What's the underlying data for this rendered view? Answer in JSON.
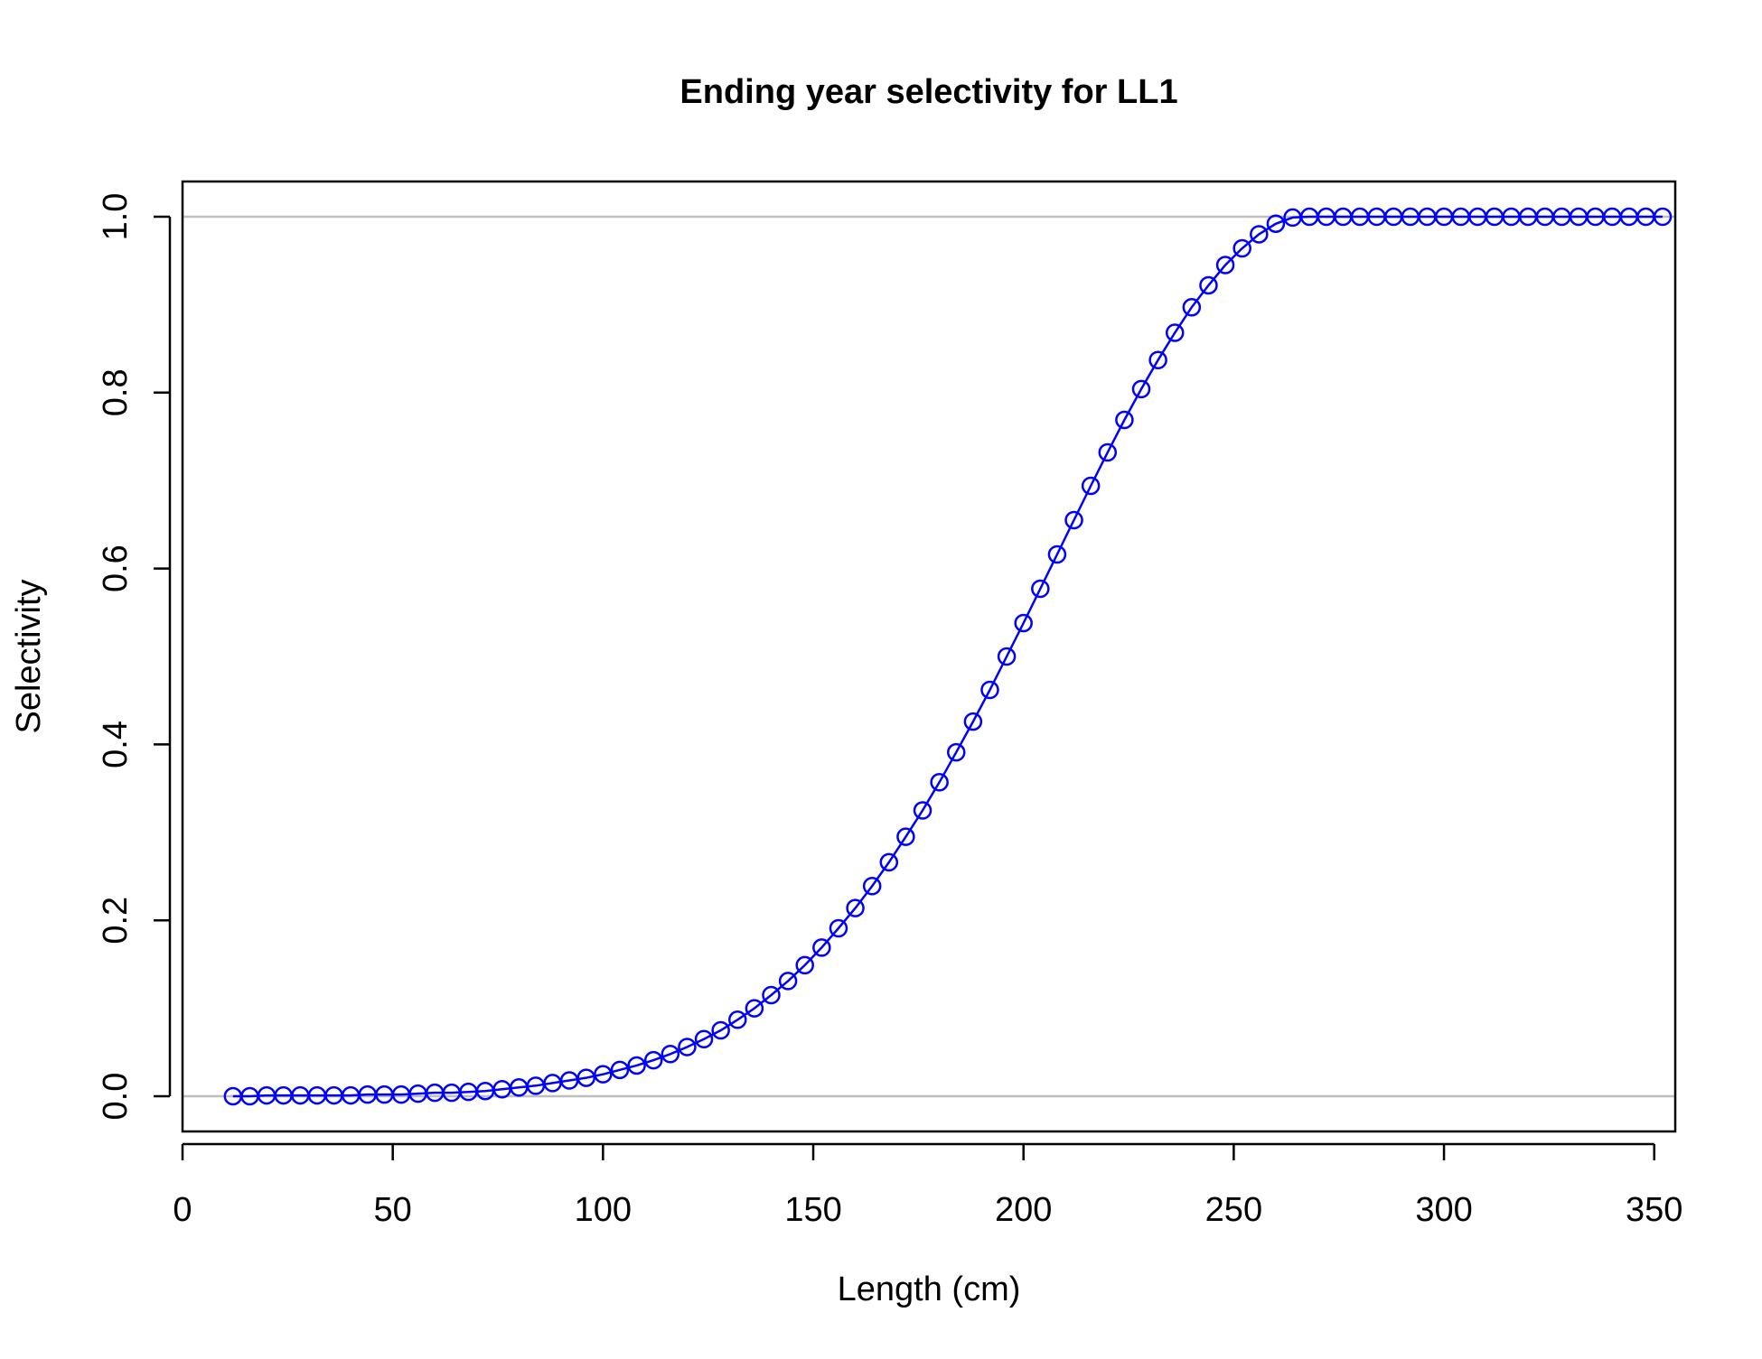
{
  "chart_data": {
    "type": "line",
    "title": "Ending year selectivity for LL1",
    "xlabel": "Length (cm)",
    "ylabel": "Selectivity",
    "xlim": [
      0,
      355
    ],
    "ylim": [
      -0.04,
      1.04
    ],
    "x_ticks": [
      0,
      50,
      100,
      150,
      200,
      250,
      300,
      350
    ],
    "x_tick_labels": [
      "0",
      "50",
      "100",
      "150",
      "200",
      "250",
      "300",
      "350"
    ],
    "y_ticks": [
      0.0,
      0.2,
      0.4,
      0.6,
      0.8,
      1.0
    ],
    "y_tick_labels": [
      "0.0",
      "0.2",
      "0.4",
      "0.6",
      "0.8",
      "1.0"
    ],
    "reference_lines": [
      0,
      1
    ],
    "grid": false,
    "legend": "none",
    "colors": {
      "series": "#0000ff",
      "reference": "#bebebe",
      "axis": "#000000"
    },
    "series": [
      {
        "x": [
          12,
          16,
          20,
          24,
          28,
          32,
          36,
          40,
          44,
          48,
          52,
          56,
          60,
          64,
          68,
          72,
          76,
          80,
          84,
          88,
          92,
          96,
          100,
          104,
          108,
          112,
          116,
          120,
          124,
          128,
          132,
          136,
          140,
          144,
          148,
          152,
          156,
          160,
          164,
          168,
          172,
          176,
          180,
          184,
          188,
          192,
          196,
          200,
          204,
          208,
          212,
          216,
          220,
          224,
          228,
          232,
          236,
          240,
          244,
          248,
          252,
          256,
          260,
          264,
          268,
          272,
          276,
          280,
          284,
          288,
          292,
          296,
          300,
          304,
          308,
          312,
          316,
          320,
          324,
          328,
          332,
          336,
          340,
          344,
          348,
          352
        ],
        "y": [
          0.0,
          0.0,
          0.001,
          0.001,
          0.001,
          0.001,
          0.001,
          0.001,
          0.002,
          0.002,
          0.002,
          0.003,
          0.004,
          0.004,
          0.005,
          0.006,
          0.008,
          0.01,
          0.012,
          0.015,
          0.018,
          0.021,
          0.025,
          0.03,
          0.035,
          0.041,
          0.048,
          0.056,
          0.065,
          0.075,
          0.087,
          0.1,
          0.115,
          0.131,
          0.149,
          0.169,
          0.191,
          0.214,
          0.239,
          0.266,
          0.295,
          0.325,
          0.357,
          0.391,
          0.426,
          0.462,
          0.5,
          0.538,
          0.577,
          0.616,
          0.655,
          0.694,
          0.732,
          0.769,
          0.804,
          0.837,
          0.868,
          0.897,
          0.922,
          0.945,
          0.964,
          0.98,
          0.992,
          0.999,
          1.0,
          1.0,
          1.0,
          1.0,
          1.0,
          1.0,
          1.0,
          1.0,
          1.0,
          1.0,
          1.0,
          1.0,
          1.0,
          1.0,
          1.0,
          1.0,
          1.0,
          1.0,
          1.0,
          1.0,
          1.0,
          1.0
        ]
      }
    ]
  }
}
